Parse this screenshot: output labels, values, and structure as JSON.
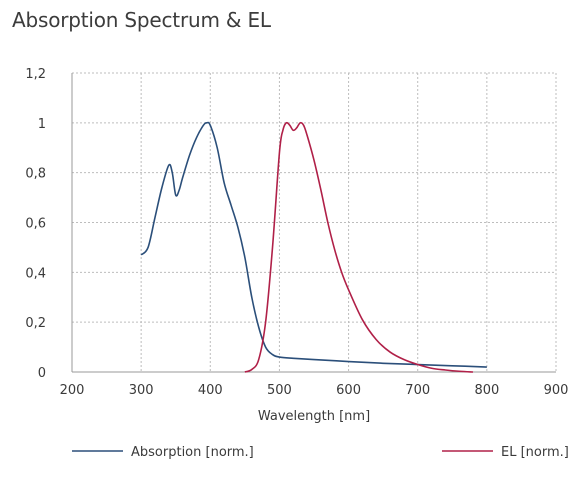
{
  "chart_data": {
    "type": "line",
    "title": "Absorption Spectrum & EL",
    "xlabel": "Wavelength [nm]",
    "ylabel": "",
    "xlim": [
      200,
      900
    ],
    "ylim": [
      0,
      1.2
    ],
    "x_ticks": [
      "200",
      "300",
      "400",
      "500",
      "600",
      "700",
      "800",
      "900"
    ],
    "y_ticks": [
      "0",
      "0,2",
      "0,4",
      "0,6",
      "0,8",
      "1",
      "1,2"
    ],
    "grid": true,
    "legend_position": "bottom",
    "series": [
      {
        "name": "Absorption [norm.]",
        "color": "#2b4f7a",
        "x": [
          300,
          310,
          320,
          330,
          340,
          345,
          350,
          355,
          360,
          370,
          380,
          390,
          395,
          400,
          410,
          420,
          430,
          440,
          450,
          460,
          470,
          480,
          490,
          500,
          520,
          550,
          600,
          650,
          700,
          750,
          800
        ],
        "y": [
          0.47,
          0.5,
          0.62,
          0.74,
          0.83,
          0.8,
          0.71,
          0.73,
          0.78,
          0.87,
          0.94,
          0.99,
          1.0,
          0.99,
          0.9,
          0.76,
          0.67,
          0.58,
          0.46,
          0.3,
          0.18,
          0.1,
          0.07,
          0.06,
          0.055,
          0.05,
          0.042,
          0.035,
          0.03,
          0.025,
          0.02
        ]
      },
      {
        "name": "EL [norm.]",
        "color": "#b02048",
        "x": [
          450,
          460,
          470,
          480,
          490,
          500,
          505,
          510,
          515,
          520,
          525,
          530,
          535,
          540,
          550,
          560,
          570,
          580,
          590,
          600,
          620,
          640,
          660,
          680,
          700,
          720,
          740,
          760,
          780
        ],
        "y": [
          0.0,
          0.01,
          0.05,
          0.2,
          0.5,
          0.88,
          0.97,
          1.0,
          0.99,
          0.97,
          0.98,
          1.0,
          0.99,
          0.95,
          0.85,
          0.73,
          0.6,
          0.49,
          0.4,
          0.33,
          0.21,
          0.13,
          0.08,
          0.05,
          0.03,
          0.015,
          0.008,
          0.003,
          0.0
        ]
      }
    ]
  }
}
